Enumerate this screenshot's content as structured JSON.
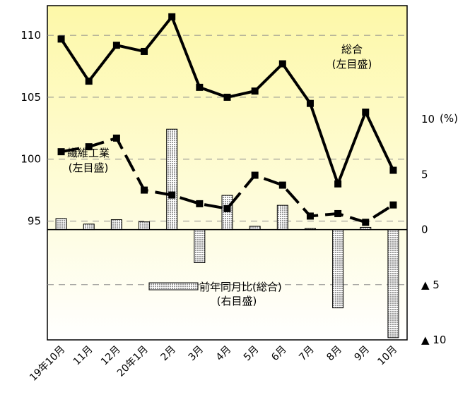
{
  "chart_data": {
    "type": "bar+line",
    "categories": [
      "19年10月",
      "11月",
      "12月",
      "20年1月",
      "2月",
      "3月",
      "4月",
      "5月",
      "6月",
      "7月",
      "8月",
      "9月",
      "10月"
    ],
    "series": [
      {
        "name": "総合",
        "name_note": "(左目盛)",
        "kind": "line",
        "axis": "left",
        "values": [
          109.7,
          106.3,
          109.2,
          108.7,
          111.5,
          105.8,
          105.0,
          105.5,
          107.7,
          104.5,
          98.0,
          103.8,
          99.1
        ]
      },
      {
        "name": "繊維工業",
        "name_note": "(左目盛)",
        "kind": "line",
        "axis": "left",
        "values": [
          100.6,
          101.0,
          101.7,
          97.5,
          97.1,
          96.4,
          96.0,
          98.7,
          97.9,
          95.4,
          95.6,
          94.9,
          96.3
        ]
      },
      {
        "name": "前年同月比(総合)",
        "name_note": "(右目盛)",
        "kind": "bar",
        "axis": "right",
        "values": [
          1.0,
          0.5,
          0.9,
          0.7,
          9.1,
          -3.0,
          3.1,
          0.3,
          2.2,
          0.1,
          -7.1,
          0.2,
          -9.8
        ]
      }
    ],
    "left_axis": {
      "ticks": [
        "110",
        "105",
        "100",
        "95"
      ],
      "tick_values": [
        110,
        105,
        100,
        95
      ],
      "ylim": [
        85.4,
        112.4
      ]
    },
    "right_axis": {
      "unit": "(%)",
      "ticks": [
        "10",
        "5",
        "0",
        "▲ 5",
        "▲ 10"
      ],
      "tick_values": [
        10,
        5,
        0,
        -5,
        -10
      ],
      "ylim": [
        -10,
        20.3
      ]
    },
    "grid": "horizontal dashed",
    "background": {
      "top": "#fdf8a8",
      "bottom": "#ffffff"
    },
    "colors": {
      "lines": "#000000",
      "bar_fill": "#dcdcdc"
    }
  }
}
